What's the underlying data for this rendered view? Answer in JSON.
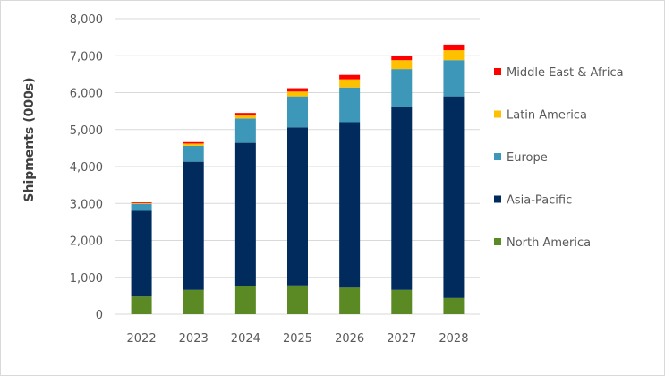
{
  "chart_data": {
    "type": "bar",
    "stacked": true,
    "title": "",
    "xlabel": "",
    "ylabel": "Shipments (000s)",
    "ylim": [
      0,
      8000
    ],
    "yticks": [
      0,
      1000,
      2000,
      3000,
      4000,
      5000,
      6000,
      7000,
      8000
    ],
    "ytick_labels": [
      "0",
      "1,000",
      "2,000",
      "3,000",
      "4,000",
      "5,000",
      "6,000",
      "7,000",
      "8,000"
    ],
    "grid": true,
    "legend_position": "right",
    "categories": [
      "2022",
      "2023",
      "2024",
      "2025",
      "2026",
      "2027",
      "2028"
    ],
    "series": [
      {
        "name": "North America",
        "color": "#5b8a25",
        "values": [
          480,
          660,
          760,
          780,
          720,
          660,
          440
        ]
      },
      {
        "name": "Asia-Pacific",
        "color": "#002b5c",
        "values": [
          2320,
          3470,
          3880,
          4280,
          4480,
          4960,
          5460
        ]
      },
      {
        "name": "Europe",
        "color": "#3d97b8",
        "values": [
          190,
          430,
          660,
          840,
          940,
          1020,
          980
        ]
      },
      {
        "name": "Latin America",
        "color": "#ffc000",
        "values": [
          20,
          60,
          80,
          130,
          220,
          240,
          270
        ]
      },
      {
        "name": "Middle East & Africa",
        "color": "#ff0000",
        "values": [
          20,
          40,
          70,
          90,
          120,
          120,
          150
        ]
      }
    ]
  }
}
